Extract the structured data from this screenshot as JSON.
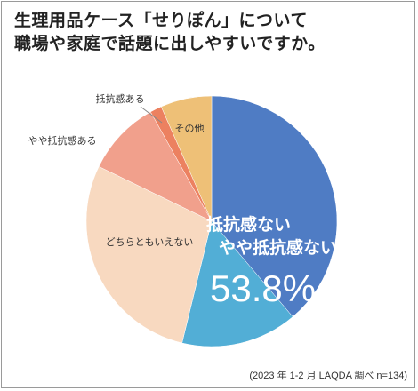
{
  "title_lines": [
    "生理用品ケース「せりぽん」について",
    "職場や家庭で話題に出しやすいですか。"
  ],
  "source_note": "(2023 年 1-2 月 LAQDA 調べ n=134)",
  "callout": {
    "label_lines": [
      "抵抗感ない",
      "やや抵抗感ない"
    ],
    "value": "53.8%"
  },
  "chart_data": {
    "type": "pie",
    "title": "生理用品ケース「せりぽん」について 職場や家庭で話題に出しやすいですか。",
    "categories": [
      "抵抗感ない",
      "やや抵抗感ない",
      "どちらともいえない",
      "やや抵抗感ある",
      "抵抗感ある",
      "その他"
    ],
    "values": [
      38.8,
      15.0,
      28.4,
      9.7,
      1.5,
      6.6
    ],
    "colors": [
      "#4f7cc4",
      "#52aed6",
      "#f8d9c0",
      "#f1a08c",
      "#ec8160",
      "#eec077"
    ],
    "labels_shown": [
      "",
      "",
      "どちらともいえない",
      "やや抵抗感ある",
      "抵抗感ある",
      "その他"
    ],
    "start_angle": "12 o'clock",
    "direction": "clockwise"
  }
}
